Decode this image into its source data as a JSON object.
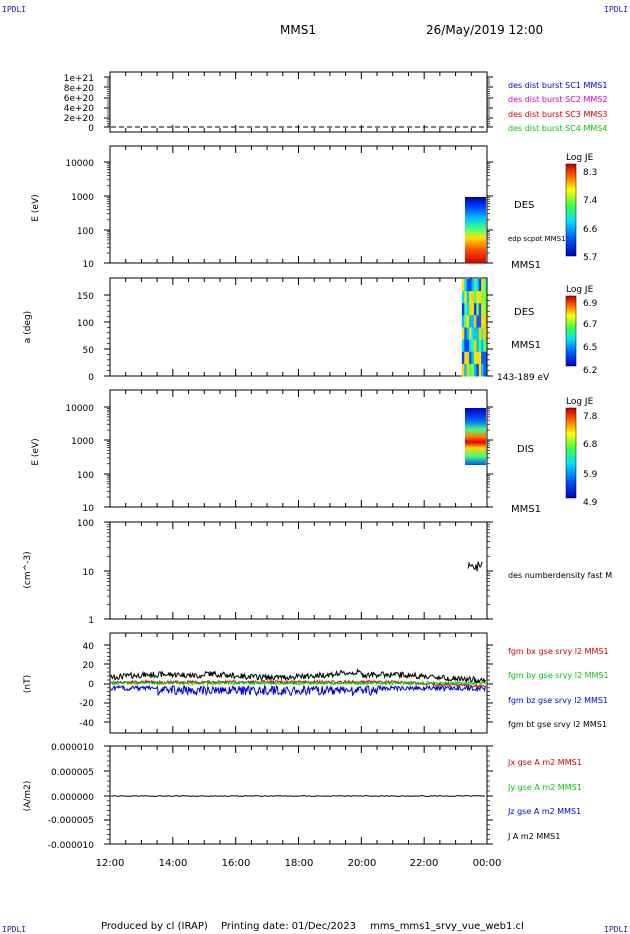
{
  "corner_labels": {
    "tl": "IPDLI",
    "tr": "IPDLI",
    "bl": "IPDLI",
    "br": "IPDLI"
  },
  "header": {
    "spacecraft": "MMS1",
    "datetime": "26/May/2019 12:00"
  },
  "footer": {
    "produced_by": "Produced by cl (IRAP)",
    "printing_date": "Printing date: 01/Dec/2023",
    "filename": "mms_mms1_srvy_vue_web1.cl"
  },
  "x_axis": {
    "tick_labels": [
      "12:00",
      "14:00",
      "16:00",
      "18:00",
      "20:00",
      "22:00",
      "00:00"
    ],
    "range_hours": [
      12,
      24
    ]
  },
  "colors": {
    "red": "#d00000",
    "green": "#00cc00",
    "blue": "#0000e0",
    "magenta": "#d000d0",
    "black": "#000000"
  },
  "chart_data": [
    {
      "type": "line",
      "panel": "distribution-counts",
      "y_tick_labels": [
        "1e+21",
        "8e+20",
        "6e+20",
        "4e+20",
        "2e+20",
        "0"
      ],
      "ylim": [
        0,
        1.1e+21
      ],
      "series": [
        {
          "name": "des dist burst SC1 MMS1",
          "color": "#0000e0"
        },
        {
          "name": "des dist burst SC2 MMS2",
          "color": "#d000d0"
        },
        {
          "name": "des dist burst SC3 MMS3",
          "color": "#d00000"
        },
        {
          "name": "des dist burst SC4 MMS4",
          "color": "#00cc00"
        }
      ],
      "baseline": 0
    },
    {
      "type": "heatmap",
      "panel": "des-energy-spectrogram",
      "ylabel": "E (eV)",
      "y_tick_labels": [
        "10000",
        "1000",
        "100",
        "10"
      ],
      "yscale": "log",
      "ylim": [
        10,
        20000
      ],
      "label": "DES",
      "overlay_label": "edp scpot MMS1",
      "sc_label": "MMS1",
      "colorbar": {
        "title": "Log JE",
        "tick_labels": [
          "8.3",
          "7.4",
          "6.6",
          "5.7"
        ],
        "range": [
          5.7,
          8.3
        ]
      },
      "data_x_range": [
        23.2,
        24.0
      ],
      "data_y_range": [
        20,
        1000
      ]
    },
    {
      "type": "heatmap",
      "panel": "des-pitch-angle",
      "ylabel": "a (deg)",
      "y_tick_labels": [
        "150",
        "100",
        "50",
        "0"
      ],
      "ylim": [
        0,
        180
      ],
      "label": "DES",
      "sc_label": "MMS1",
      "energy_label": "143-189 eV",
      "colorbar": {
        "title": "Log JE",
        "tick_labels": [
          "6.9",
          "6.7",
          "6.5",
          "6.2"
        ],
        "range": [
          6.2,
          6.9
        ]
      },
      "data_x_range": [
        23.2,
        24.0
      ]
    },
    {
      "type": "heatmap",
      "panel": "dis-energy-spectrogram",
      "ylabel": "E (eV)",
      "y_tick_labels": [
        "10000",
        "1000",
        "100",
        "10"
      ],
      "yscale": "log",
      "ylim": [
        10,
        20000
      ],
      "label": "DIS",
      "sc_label": "MMS1",
      "colorbar": {
        "title": "Log JE",
        "tick_labels": [
          "7.8",
          "6.8",
          "5.9",
          "4.9"
        ],
        "range": [
          4.9,
          7.8
        ]
      },
      "data_x_range": [
        23.2,
        24.0
      ],
      "data_y_range": [
        200,
        10000
      ]
    },
    {
      "type": "line",
      "panel": "number-density",
      "ylabel": "(cm^-3)",
      "y_tick_labels": [
        "100",
        "10",
        "1"
      ],
      "yscale": "log",
      "ylim": [
        1,
        100
      ],
      "series": [
        {
          "name": "des numberdensity fast M",
          "color": "#000000",
          "x_range": [
            23.4,
            23.85
          ],
          "level": 12
        }
      ]
    },
    {
      "type": "line",
      "panel": "magnetic-field",
      "ylabel": "(nT)",
      "y_tick_labels": [
        "40",
        "20",
        "0",
        "-20",
        "-40"
      ],
      "ylim": [
        -50,
        50
      ],
      "series": [
        {
          "name": "fgm bx gse srvy l2 MMS1",
          "color": "#d00000"
        },
        {
          "name": "fgm by gse srvy l2 MMS1",
          "color": "#00cc00"
        },
        {
          "name": "fgm bz gse srvy l2 MMS1",
          "color": "#0000e0"
        },
        {
          "name": "fgm bt gse srvy l2 MMS1",
          "color": "#000000"
        }
      ]
    },
    {
      "type": "line",
      "panel": "current-density",
      "ylabel": "(A/m2)",
      "y_tick_labels": [
        "0.000010",
        "0.000005",
        "0.000000",
        "-0.000005",
        "-0.000010"
      ],
      "ylim": [
        -1e-05,
        1e-05
      ],
      "series": [
        {
          "name": "Jx gse A m2 MMS1",
          "color": "#d00000"
        },
        {
          "name": "Jy gse A m2 MMS1",
          "color": "#00cc00"
        },
        {
          "name": "Jz gse A m2 MMS1",
          "color": "#0000e0"
        },
        {
          "name": "J A m2 MMS1",
          "color": "#000000"
        }
      ]
    }
  ]
}
